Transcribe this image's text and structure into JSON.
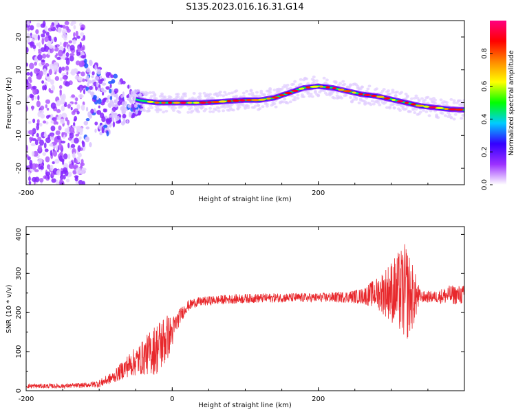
{
  "title": "S135.2023.016.16.31.G14",
  "chart_data": [
    {
      "type": "heatmap",
      "xlabel": "Height of straight line (km)",
      "ylabel": "Frequency (Hz)",
      "xlim": [
        -200,
        400
      ],
      "ylim": [
        -25,
        25
      ],
      "x_ticks": [
        -200,
        0,
        200
      ],
      "y_ticks": [
        -20,
        -10,
        0,
        10,
        20
      ],
      "colorbar": {
        "label": "Normalized spectral amplitude",
        "range": [
          0,
          1
        ],
        "ticks": [
          0.0,
          0.2,
          0.4,
          0.6,
          0.8
        ],
        "tick_labels": [
          "0.0",
          "0.2",
          "0.4",
          "0.6",
          "0.8"
        ],
        "colormap": [
          "#ffffff",
          "#9b30ff",
          "#3300ff",
          "#00ccff",
          "#00ff00",
          "#ffff00",
          "#ff8800",
          "#ff0000",
          "#ff0080"
        ]
      },
      "ridge": {
        "x": [
          -60,
          -40,
          -20,
          0,
          20,
          40,
          60,
          80,
          100,
          120,
          140,
          160,
          180,
          200,
          220,
          240,
          260,
          280,
          300,
          320,
          340,
          360,
          380,
          400
        ],
        "y": [
          1.5,
          0.5,
          0.0,
          0.0,
          0.0,
          0.0,
          0.2,
          0.5,
          0.8,
          0.8,
          1.5,
          3.0,
          4.5,
          5.0,
          4.5,
          3.5,
          2.5,
          2.0,
          1.0,
          0.0,
          -1.0,
          -1.5,
          -2.0,
          -2.2
        ]
      }
    },
    {
      "type": "line",
      "xlabel": "Height of straight line (km)",
      "ylabel": "SNR (10 * v/v)",
      "xlim": [
        -200,
        400
      ],
      "ylim": [
        0,
        420
      ],
      "x_ticks": [
        -200,
        0,
        200
      ],
      "y_ticks": [
        0,
        100,
        200,
        300,
        400
      ],
      "series": [
        {
          "color": "#e8282c",
          "x": [
            -200,
            -150,
            -120,
            -100,
            -80,
            -60,
            -40,
            -20,
            -10,
            0,
            10,
            20,
            30,
            40,
            60,
            100,
            150,
            200,
            240,
            260,
            280,
            300,
            320,
            330,
            340,
            360,
            380,
            400
          ],
          "y": [
            12,
            12,
            14,
            18,
            35,
            65,
            85,
            110,
            130,
            150,
            190,
            215,
            225,
            228,
            232,
            236,
            238,
            238,
            240,
            242,
            250,
            255,
            250,
            240,
            240,
            240,
            245,
            245
          ],
          "spread": [
            6,
            6,
            6,
            10,
            15,
            30,
            45,
            70,
            70,
            40,
            20,
            15,
            12,
            12,
            12,
            12,
            12,
            12,
            15,
            20,
            40,
            80,
            130,
            80,
            15,
            15,
            25,
            25
          ]
        }
      ]
    }
  ]
}
